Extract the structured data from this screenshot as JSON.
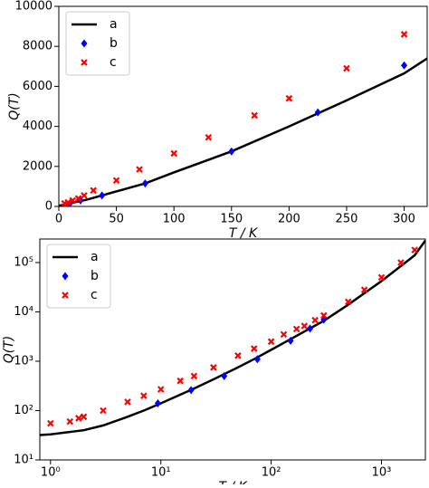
{
  "chart_data": [
    {
      "type": "line",
      "xlabel": "T / K",
      "ylabel": "Q(T)",
      "xlog": false,
      "ylog": false,
      "legend": "upper left",
      "xlim": [
        0,
        320
      ],
      "ylim": [
        0,
        10000
      ],
      "xticks": [
        0,
        50,
        100,
        150,
        200,
        250,
        300
      ],
      "yticks": [
        0,
        2000,
        4000,
        6000,
        8000,
        10000
      ],
      "series": [
        {
          "name": "a",
          "color": "#000000",
          "style": "line",
          "x": [
            0,
            25,
            50,
            75,
            100,
            150,
            200,
            250,
            300,
            320
          ],
          "values": [
            30,
            350,
            750,
            1150,
            1700,
            2750,
            4000,
            5300,
            6650,
            7400
          ]
        },
        {
          "name": "b",
          "color": "#0000ff",
          "style": "diamond",
          "x": [
            9.4,
            18.8,
            37.5,
            75,
            150,
            225,
            300
          ],
          "values": [
            130,
            300,
            550,
            1150,
            2750,
            4700,
            7050
          ]
        },
        {
          "name": "c",
          "color": "#ff0000",
          "style": "cross",
          "x": [
            5,
            8,
            12,
            17,
            22,
            30,
            50,
            70,
            100,
            130,
            170,
            200,
            250,
            300
          ],
          "values": [
            150,
            200,
            300,
            400,
            550,
            800,
            1300,
            1850,
            2650,
            3450,
            4550,
            5400,
            6900,
            8600
          ]
        }
      ]
    },
    {
      "type": "line",
      "xlabel": "T / K",
      "ylabel": "Q(T)",
      "xlog": true,
      "ylog": true,
      "legend": "upper left",
      "xlim": [
        0.8,
        2500
      ],
      "ylim": [
        10,
        300000
      ],
      "xticks": [
        {
          "value": 1,
          "label": "10⁰"
        },
        {
          "value": 10,
          "label": "10¹"
        },
        {
          "value": 100,
          "label": "10²"
        },
        {
          "value": 1000,
          "label": "10³"
        }
      ],
      "yticks": [
        {
          "value": 10,
          "label": "10¹"
        },
        {
          "value": 100,
          "label": "10²"
        },
        {
          "value": 1000,
          "label": "10³"
        },
        {
          "value": 10000,
          "label": "10⁴"
        },
        {
          "value": 100000,
          "label": "10⁵"
        }
      ],
      "series": [
        {
          "name": "a",
          "color": "#000000",
          "style": "line",
          "x": [
            0.8,
            1,
            2,
            3,
            5,
            7,
            10,
            20,
            30,
            50,
            70,
            100,
            200,
            300,
            500,
            700,
            1000,
            2000,
            2500
          ],
          "values": [
            32,
            33,
            40,
            50,
            75,
            100,
            140,
            280,
            430,
            750,
            1100,
            1700,
            4000,
            6600,
            14000,
            24000,
            42000,
            140000,
            280000
          ]
        },
        {
          "name": "b",
          "color": "#0000ff",
          "style": "diamond",
          "x": [
            9.4,
            18.8,
            37.5,
            75,
            150,
            225,
            300
          ],
          "values": [
            140,
            260,
            500,
            1100,
            2600,
            4600,
            7000
          ]
        },
        {
          "name": "c",
          "color": "#ff0000",
          "style": "cross",
          "x": [
            1,
            1.5,
            1.8,
            2,
            3,
            5,
            7,
            10,
            15,
            20,
            30,
            50,
            70,
            100,
            130,
            170,
            200,
            250,
            300,
            500,
            700,
            1000,
            1500,
            2000
          ],
          "values": [
            55,
            60,
            70,
            75,
            100,
            150,
            200,
            270,
            400,
            500,
            750,
            1300,
            1800,
            2500,
            3500,
            4500,
            5200,
            6800,
            8500,
            16000,
            28000,
            50000,
            100000,
            180000
          ]
        }
      ]
    }
  ]
}
